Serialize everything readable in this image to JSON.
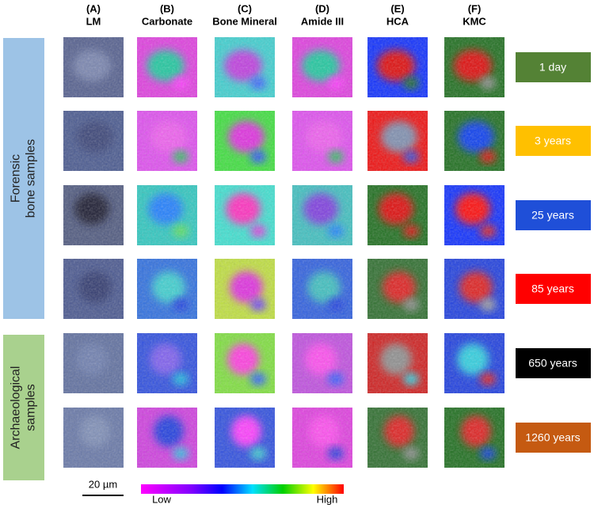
{
  "columns": [
    {
      "letter": "(A)",
      "name": "LM"
    },
    {
      "letter": "(B)",
      "name": "Carbonate"
    },
    {
      "letter": "(C)",
      "name": "Bone Mineral"
    },
    {
      "letter": "(D)",
      "name": "Amide III"
    },
    {
      "letter": "(E)",
      "name": "HCA"
    },
    {
      "letter": "(F)",
      "name": "KMC"
    }
  ],
  "groups": [
    {
      "lines": [
        "Forensic",
        "bone samples"
      ],
      "color": "#9dc3e6"
    },
    {
      "lines": [
        "Archaeological",
        "samples"
      ],
      "color": "#a9d18e"
    }
  ],
  "ages": [
    {
      "label": "1 day",
      "color": "#548235"
    },
    {
      "label": "3 years",
      "color": "#ffc000"
    },
    {
      "label": "25 years",
      "color": "#1f4fd8"
    },
    {
      "label": "85 years",
      "color": "#ff0000"
    },
    {
      "label": "650 years",
      "color": "#000000"
    },
    {
      "label": "1260 years",
      "color": "#c55a11"
    }
  ],
  "colorbar": {
    "low": "Low",
    "high": "High"
  },
  "scale_bar": "20 µm"
}
